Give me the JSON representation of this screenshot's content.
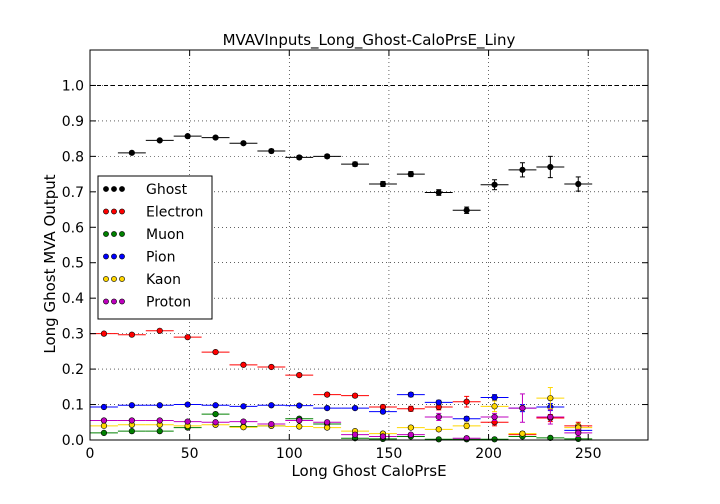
{
  "chart_data": {
    "type": "scatter",
    "title": "MVAVInputs_Long_Ghost-CaloPrsE_Liny",
    "xlabel": "Long Ghost CaloPrsE",
    "ylabel": "Long Ghost MVA Output",
    "xlim": [
      0,
      280
    ],
    "ylim": [
      0.0,
      1.1
    ],
    "xticks": [
      "0",
      "50",
      "100",
      "150",
      "200",
      "250"
    ],
    "yticks": [
      "0.0",
      "0.1",
      "0.2",
      "0.3",
      "0.4",
      "0.5",
      "0.6",
      "0.7",
      "0.8",
      "0.9",
      "1.0"
    ],
    "grid": true,
    "reference_line": 1.0,
    "legend_position": "center-left",
    "x_bin_halfwidth": 7,
    "series": [
      {
        "name": "Ghost",
        "color": "#000000",
        "points": [
          {
            "x": 21,
            "y": 0.81,
            "err": 0.004
          },
          {
            "x": 35,
            "y": 0.845,
            "err": 0.004
          },
          {
            "x": 49,
            "y": 0.857,
            "err": 0.004
          },
          {
            "x": 63,
            "y": 0.853,
            "err": 0.004
          },
          {
            "x": 77,
            "y": 0.837,
            "err": 0.004
          },
          {
            "x": 91,
            "y": 0.815,
            "err": 0.005
          },
          {
            "x": 105,
            "y": 0.797,
            "err": 0.005
          },
          {
            "x": 119,
            "y": 0.8,
            "err": 0.005
          },
          {
            "x": 133,
            "y": 0.778,
            "err": 0.006
          },
          {
            "x": 147,
            "y": 0.722,
            "err": 0.007
          },
          {
            "x": 161,
            "y": 0.75,
            "err": 0.007
          },
          {
            "x": 175,
            "y": 0.698,
            "err": 0.008
          },
          {
            "x": 189,
            "y": 0.648,
            "err": 0.009
          },
          {
            "x": 203,
            "y": 0.72,
            "err": 0.014
          },
          {
            "x": 217,
            "y": 0.762,
            "err": 0.02
          },
          {
            "x": 231,
            "y": 0.77,
            "err": 0.03
          },
          {
            "x": 245,
            "y": 0.722,
            "err": 0.02
          }
        ]
      },
      {
        "name": "Electron",
        "color": "#ff0000",
        "points": [
          {
            "x": 7,
            "y": 0.3,
            "err": 0.003
          },
          {
            "x": 21,
            "y": 0.297,
            "err": 0.003
          },
          {
            "x": 35,
            "y": 0.308,
            "err": 0.003
          },
          {
            "x": 49,
            "y": 0.29,
            "err": 0.003
          },
          {
            "x": 63,
            "y": 0.248,
            "err": 0.003
          },
          {
            "x": 77,
            "y": 0.212,
            "err": 0.003
          },
          {
            "x": 91,
            "y": 0.206,
            "err": 0.003
          },
          {
            "x": 105,
            "y": 0.183,
            "err": 0.004
          },
          {
            "x": 119,
            "y": 0.128,
            "err": 0.004
          },
          {
            "x": 133,
            "y": 0.125,
            "err": 0.005
          },
          {
            "x": 147,
            "y": 0.093,
            "err": 0.006
          },
          {
            "x": 161,
            "y": 0.088,
            "err": 0.007
          },
          {
            "x": 175,
            "y": 0.093,
            "err": 0.008
          },
          {
            "x": 189,
            "y": 0.108,
            "err": 0.015
          },
          {
            "x": 203,
            "y": 0.05,
            "err": 0.01
          },
          {
            "x": 217,
            "y": 0.015,
            "err": 0.005
          },
          {
            "x": 231,
            "y": 0.062,
            "err": 0.01
          },
          {
            "x": 245,
            "y": 0.04,
            "err": 0.01
          }
        ]
      },
      {
        "name": "Muon",
        "color": "#008000",
        "points": [
          {
            "x": 7,
            "y": 0.02,
            "err": 0.003
          },
          {
            "x": 21,
            "y": 0.025,
            "err": 0.003
          },
          {
            "x": 35,
            "y": 0.025,
            "err": 0.003
          },
          {
            "x": 49,
            "y": 0.035,
            "err": 0.003
          },
          {
            "x": 63,
            "y": 0.073,
            "err": 0.004
          },
          {
            "x": 77,
            "y": 0.038,
            "err": 0.003
          },
          {
            "x": 91,
            "y": 0.04,
            "err": 0.003
          },
          {
            "x": 105,
            "y": 0.06,
            "err": 0.004
          },
          {
            "x": 119,
            "y": 0.045,
            "err": 0.004
          },
          {
            "x": 133,
            "y": 0.005,
            "err": 0.003
          },
          {
            "x": 147,
            "y": 0.003,
            "err": 0.002
          },
          {
            "x": 161,
            "y": 0.01,
            "err": 0.003
          },
          {
            "x": 175,
            "y": 0.002,
            "err": 0.002
          },
          {
            "x": 189,
            "y": 0.002,
            "err": 0.002
          },
          {
            "x": 203,
            "y": 0.002,
            "err": 0.002
          },
          {
            "x": 217,
            "y": 0.01,
            "err": 0.003
          },
          {
            "x": 231,
            "y": 0.006,
            "err": 0.003
          },
          {
            "x": 245,
            "y": 0.003,
            "err": 0.002
          }
        ]
      },
      {
        "name": "Pion",
        "color": "#0000ff",
        "points": [
          {
            "x": 7,
            "y": 0.093,
            "err": 0.003
          },
          {
            "x": 21,
            "y": 0.098,
            "err": 0.003
          },
          {
            "x": 35,
            "y": 0.098,
            "err": 0.003
          },
          {
            "x": 49,
            "y": 0.1,
            "err": 0.003
          },
          {
            "x": 63,
            "y": 0.098,
            "err": 0.003
          },
          {
            "x": 77,
            "y": 0.095,
            "err": 0.003
          },
          {
            "x": 91,
            "y": 0.098,
            "err": 0.003
          },
          {
            "x": 105,
            "y": 0.097,
            "err": 0.003
          },
          {
            "x": 119,
            "y": 0.09,
            "err": 0.003
          },
          {
            "x": 133,
            "y": 0.09,
            "err": 0.004
          },
          {
            "x": 147,
            "y": 0.08,
            "err": 0.004
          },
          {
            "x": 161,
            "y": 0.128,
            "err": 0.006
          },
          {
            "x": 175,
            "y": 0.106,
            "err": 0.006
          },
          {
            "x": 189,
            "y": 0.06,
            "err": 0.006
          },
          {
            "x": 203,
            "y": 0.12,
            "err": 0.008
          },
          {
            "x": 217,
            "y": 0.09,
            "err": 0.01
          },
          {
            "x": 231,
            "y": 0.093,
            "err": 0.01
          },
          {
            "x": 245,
            "y": 0.027,
            "err": 0.005
          }
        ]
      },
      {
        "name": "Kaon",
        "color": "#ffd700",
        "points": [
          {
            "x": 7,
            "y": 0.04,
            "err": 0.003
          },
          {
            "x": 21,
            "y": 0.043,
            "err": 0.003
          },
          {
            "x": 35,
            "y": 0.043,
            "err": 0.003
          },
          {
            "x": 49,
            "y": 0.04,
            "err": 0.003
          },
          {
            "x": 63,
            "y": 0.043,
            "err": 0.003
          },
          {
            "x": 77,
            "y": 0.036,
            "err": 0.003
          },
          {
            "x": 91,
            "y": 0.04,
            "err": 0.003
          },
          {
            "x": 105,
            "y": 0.038,
            "err": 0.003
          },
          {
            "x": 119,
            "y": 0.035,
            "err": 0.004
          },
          {
            "x": 133,
            "y": 0.025,
            "err": 0.004
          },
          {
            "x": 147,
            "y": 0.018,
            "err": 0.004
          },
          {
            "x": 161,
            "y": 0.035,
            "err": 0.005
          },
          {
            "x": 175,
            "y": 0.03,
            "err": 0.005
          },
          {
            "x": 189,
            "y": 0.04,
            "err": 0.008
          },
          {
            "x": 203,
            "y": 0.095,
            "err": 0.015
          },
          {
            "x": 217,
            "y": 0.018,
            "err": 0.006
          },
          {
            "x": 231,
            "y": 0.118,
            "err": 0.03
          },
          {
            "x": 245,
            "y": 0.035,
            "err": 0.01
          }
        ]
      },
      {
        "name": "Proton",
        "color": "#bf00bf",
        "points": [
          {
            "x": 7,
            "y": 0.055,
            "err": 0.003
          },
          {
            "x": 21,
            "y": 0.055,
            "err": 0.003
          },
          {
            "x": 35,
            "y": 0.055,
            "err": 0.003
          },
          {
            "x": 49,
            "y": 0.052,
            "err": 0.003
          },
          {
            "x": 63,
            "y": 0.05,
            "err": 0.003
          },
          {
            "x": 77,
            "y": 0.052,
            "err": 0.003
          },
          {
            "x": 91,
            "y": 0.045,
            "err": 0.003
          },
          {
            "x": 105,
            "y": 0.055,
            "err": 0.004
          },
          {
            "x": 119,
            "y": 0.05,
            "err": 0.004
          },
          {
            "x": 133,
            "y": 0.015,
            "err": 0.004
          },
          {
            "x": 147,
            "y": 0.01,
            "err": 0.004
          },
          {
            "x": 161,
            "y": 0.015,
            "err": 0.004
          },
          {
            "x": 175,
            "y": 0.065,
            "err": 0.01
          },
          {
            "x": 189,
            "y": 0.005,
            "err": 0.003
          },
          {
            "x": 203,
            "y": 0.065,
            "err": 0.01
          },
          {
            "x": 217,
            "y": 0.09,
            "err": 0.04
          },
          {
            "x": 231,
            "y": 0.065,
            "err": 0.02
          },
          {
            "x": 245,
            "y": 0.02,
            "err": 0.01
          }
        ]
      }
    ]
  }
}
